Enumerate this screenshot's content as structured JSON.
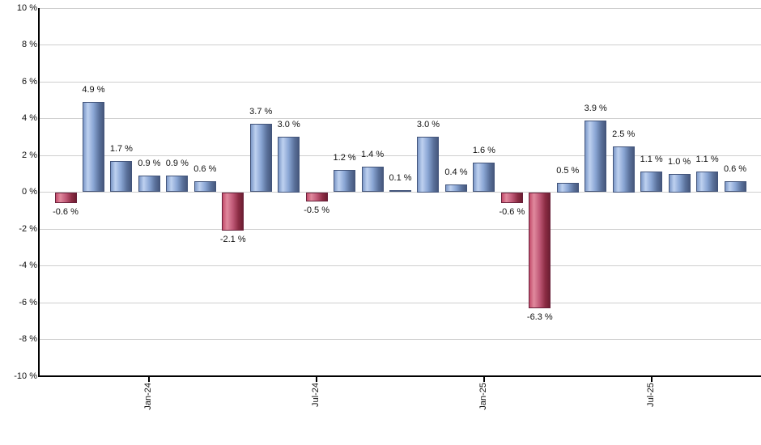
{
  "chart_data": {
    "type": "bar",
    "title": "",
    "xlabel": "",
    "ylabel": "",
    "ylim": [
      -10,
      10
    ],
    "ytick_step": 2,
    "grid": "horizontal",
    "y_tick_labels": [
      "10 %",
      "8 %",
      "6 %",
      "4 %",
      "2 %",
      "0 %",
      "-2 %",
      "-4 %",
      "-6 %",
      "-8 %",
      "-10 %"
    ],
    "x_tick_labels": [
      "Jan-24",
      "Jul-24",
      "Jan-25",
      "Jul-25"
    ],
    "x_tick_indices": [
      3,
      9,
      15,
      21
    ],
    "values": [
      -0.6,
      4.9,
      1.7,
      0.9,
      0.9,
      0.6,
      -2.1,
      3.7,
      3.0,
      -0.5,
      1.2,
      1.4,
      0.1,
      3.0,
      0.4,
      1.6,
      -0.6,
      -6.3,
      0.5,
      3.9,
      2.5,
      1.1,
      1.0,
      1.1,
      0.6
    ],
    "bar_labels": [
      "-0.6 %",
      "4.9 %",
      "1.7 %",
      "0.9 %",
      "0.9 %",
      "0.6 %",
      "-2.1 %",
      "3.7 %",
      "3.0 %",
      "-0.5 %",
      "1.2 %",
      "1.4 %",
      "0.1 %",
      "3.0 %",
      "0.4 %",
      "1.6 %",
      "-0.6 %",
      "-6.3 %",
      "0.5 %",
      "3.9 %",
      "2.5 %",
      "1.1 %",
      "1.0 %",
      "1.1 %",
      "0.6 %"
    ],
    "colors": {
      "positive_bar_gradient": [
        "#7d99c8",
        "#bed1f0",
        "#8aa6d4",
        "#5b729c",
        "#46587d"
      ],
      "positive_bar_border": "#42547a",
      "negative_bar_gradient": [
        "#c34b6a",
        "#e08a9e",
        "#c05977",
        "#8c2c44",
        "#6d1f32"
      ],
      "negative_bar_border": "#68203a",
      "gridline": "#cfcfcf",
      "axis": "#000000",
      "label_text": "#111111"
    }
  }
}
